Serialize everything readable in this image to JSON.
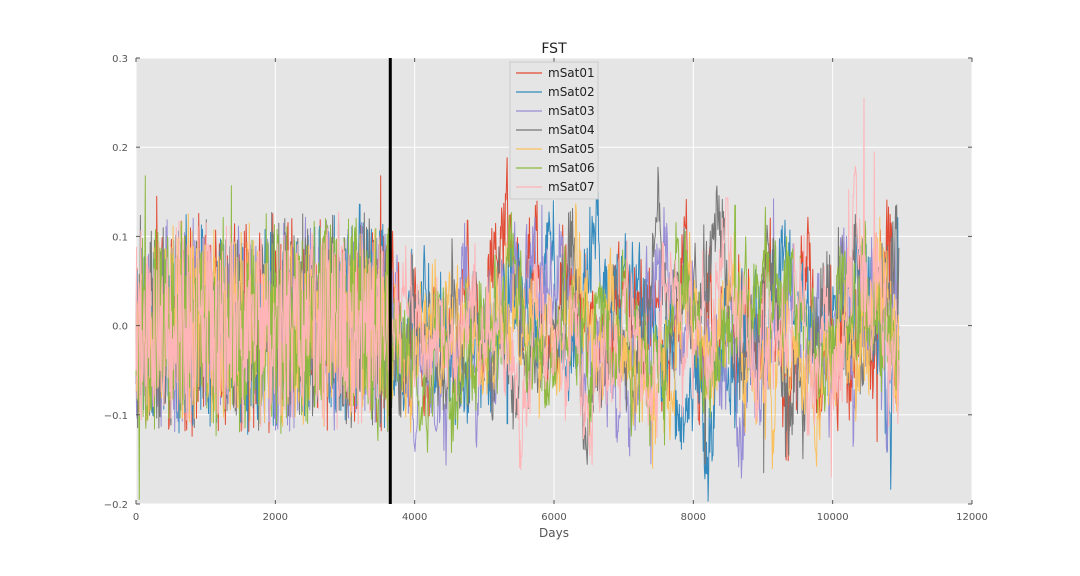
{
  "chart_data": {
    "type": "line",
    "title": "FST",
    "xlabel": "Days",
    "ylabel": "",
    "xlim": [
      0,
      12000
    ],
    "ylim": [
      -0.2,
      0.3
    ],
    "x_ticks": [
      0,
      2000,
      4000,
      6000,
      8000,
      10000,
      12000
    ],
    "x_tick_labels": [
      "0",
      "2000",
      "4000",
      "6000",
      "8000",
      "10000",
      "12000"
    ],
    "y_ticks": [
      -0.2,
      -0.1,
      0.0,
      0.1,
      0.2,
      0.3
    ],
    "y_tick_labels": [
      "−0.2",
      "−0.1",
      "0.0",
      "0.1",
      "0.2",
      "0.3"
    ],
    "grid": true,
    "legend_position": "top-center",
    "background_color": "#e5e5e5",
    "vertical_marker": {
      "x": 3650,
      "color": "#000000"
    },
    "x_domain": [
      0,
      10950
    ],
    "series": [
      {
        "name": "mSat01",
        "color": "#e24a33",
        "seed": 11,
        "peaks": [
          [
            300,
            0.145
          ],
          [
            3510,
            0.168
          ],
          [
            4760,
            0.118
          ],
          [
            10640,
            -0.13
          ]
        ]
      },
      {
        "name": "mSat02",
        "color": "#348abd",
        "seed": 23,
        "peaks": [
          [
            3210,
            0.136
          ],
          [
            5330,
            -0.11
          ],
          [
            10930,
            0.121
          ]
        ]
      },
      {
        "name": "mSat03",
        "color": "#988ed5",
        "seed": 37,
        "peaks": [
          [
            5830,
            0.135
          ],
          [
            7390,
            -0.155
          ],
          [
            9150,
            0.142
          ]
        ]
      },
      {
        "name": "mSat04",
        "color": "#777777",
        "seed": 41,
        "peaks": [
          [
            8170,
            -0.155
          ],
          [
            9010,
            -0.165
          ],
          [
            10080,
            0.11
          ]
        ]
      },
      {
        "name": "mSat05",
        "color": "#fbc15e",
        "seed": 53,
        "peaks": [
          [
            530,
            0.112
          ],
          [
            7580,
            -0.12
          ],
          [
            10420,
            0.1
          ]
        ]
      },
      {
        "name": "mSat06",
        "color": "#8eba42",
        "seed": 67,
        "peaks": [
          [
            50,
            -0.195
          ],
          [
            130,
            0.168
          ],
          [
            1370,
            0.157
          ],
          [
            8600,
            0.135
          ]
        ]
      },
      {
        "name": "mSat07",
        "color": "#ffb5b8",
        "seed": 79,
        "peaks": [
          [
            10450,
            0.255
          ],
          [
            10600,
            0.195
          ],
          [
            9980,
            -0.17
          ]
        ]
      }
    ]
  }
}
